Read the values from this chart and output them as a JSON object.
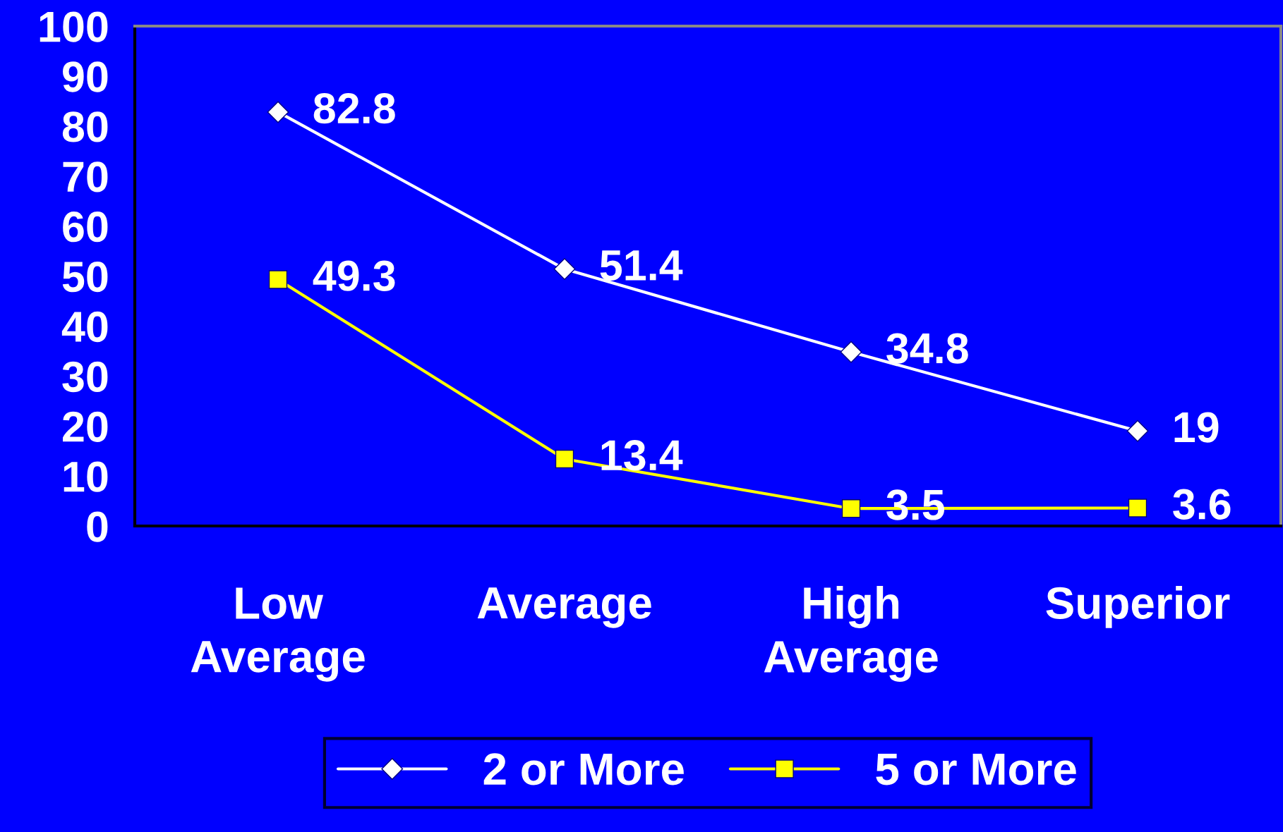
{
  "chart_data": {
    "type": "line",
    "categories": [
      "Low\nAverage",
      "Average",
      "High\nAverage",
      "Superior"
    ],
    "series": [
      {
        "name": "2 or More",
        "color": "#ffffff",
        "values": [
          82.8,
          51.4,
          34.8,
          19
        ],
        "marker": "diamond"
      },
      {
        "name": "5 or More",
        "color": "#ffff00",
        "values": [
          49.3,
          13.4,
          3.5,
          3.6
        ],
        "marker": "square"
      }
    ],
    "ylim": [
      0,
      100
    ],
    "yticks": [
      0,
      10,
      20,
      30,
      40,
      50,
      60,
      70,
      80,
      90,
      100
    ],
    "grid": false,
    "legend": "bottom",
    "data_labels": true,
    "line_style": "solid"
  }
}
